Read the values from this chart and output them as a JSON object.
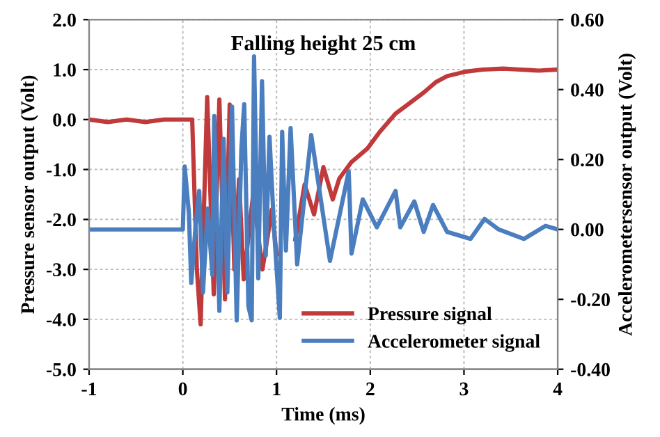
{
  "chart_data": {
    "type": "line",
    "title": "Falling height 25 cm",
    "xlabel": "Time (ms)",
    "ylabel": "Pressure sensor output (Volt)",
    "y2label": "Accelerometersensor output (Volt)",
    "xlim": [
      -1,
      4
    ],
    "xticks": [
      -1,
      0,
      1,
      2,
      3,
      4
    ],
    "ylim": [
      -5,
      2
    ],
    "yticks": [
      {
        "value": -5,
        "label": "-5.0"
      },
      {
        "value": -4,
        "label": "-4.0"
      },
      {
        "value": -3,
        "label": "-3.0"
      },
      {
        "value": -2,
        "label": "-2.0"
      },
      {
        "value": -1,
        "label": "-1.0"
      },
      {
        "value": 0,
        "label": "0.0"
      },
      {
        "value": 1,
        "label": "1.0"
      },
      {
        "value": 2,
        "label": "2.0"
      }
    ],
    "y2lim": [
      -0.4,
      0.6
    ],
    "y2ticks": [
      {
        "value": -0.4,
        "label": "-0.40"
      },
      {
        "value": -0.2,
        "label": "-0.20"
      },
      {
        "value": 0,
        "label": "0.00"
      },
      {
        "value": 0.2,
        "label": "0.20"
      },
      {
        "value": 0.4,
        "label": "0.40"
      },
      {
        "value": 0.6,
        "label": "0.60"
      }
    ],
    "grid": true,
    "legend": "bottom right",
    "line_style": "solid",
    "marker": "none",
    "series": [
      {
        "name": "Pressure signal",
        "color": "#c0393b",
        "x": [
          -1,
          -0.8,
          -0.6,
          -0.4,
          -0.2,
          0.0,
          0.1,
          0.15,
          0.19,
          0.26,
          0.33,
          0.39,
          0.45,
          0.5,
          0.55,
          0.6,
          0.65,
          0.75,
          0.85,
          0.95,
          1.0,
          1.1,
          1.2,
          1.3,
          1.4,
          1.5,
          1.6,
          1.67,
          1.8,
          1.97,
          2.1,
          2.27,
          2.4,
          2.57,
          2.7,
          2.82,
          3.02,
          3.2,
          3.42,
          3.6,
          3.8,
          3.99
        ],
        "values": [
          0.0,
          -0.05,
          0.0,
          -0.05,
          0.0,
          0.0,
          0.0,
          -3.0,
          -4.1,
          0.45,
          -3.5,
          0.4,
          -3.6,
          0.3,
          -3.0,
          -1.2,
          -3.2,
          -1.5,
          -3.0,
          -1.8,
          -2.7,
          null,
          -2.4,
          -1.3,
          -1.9,
          -0.95,
          -1.6,
          -1.18,
          -0.85,
          -0.58,
          -0.25,
          0.12,
          0.3,
          0.54,
          0.75,
          0.87,
          0.96,
          1.0,
          1.02,
          1.0,
          0.98,
          1.0
        ]
      },
      {
        "name": "Accelerometer signal",
        "color": "#4a7ebf",
        "axis": "y2",
        "x": [
          -1,
          -0.5,
          0.0,
          0.02,
          0.065,
          0.09,
          0.135,
          0.175,
          0.215,
          0.265,
          0.315,
          0.335,
          0.39,
          0.435,
          0.475,
          0.525,
          0.575,
          0.625,
          0.655,
          0.7,
          0.735,
          0.76,
          0.805,
          0.845,
          0.885,
          0.925,
          0.975,
          1.035,
          1.06,
          1.1,
          1.15,
          1.22,
          1.37,
          1.57,
          1.77,
          1.8,
          1.92,
          2.07,
          2.27,
          2.32,
          2.47,
          2.57,
          2.67,
          2.82,
          3.07,
          3.22,
          3.37,
          3.64,
          3.87,
          4.0
        ],
        "values": [
          0.0,
          0.0,
          0.0,
          0.18,
          0.046,
          -0.153,
          0.006,
          0.11,
          -0.18,
          0.06,
          -0.13,
          0.324,
          -0.233,
          0.259,
          -0.18,
          0.351,
          -0.26,
          0.231,
          0.358,
          -0.22,
          -0.26,
          0.495,
          -0.14,
          0.424,
          -0.074,
          0.265,
          -0.007,
          -0.253,
          0.279,
          -0.06,
          0.29,
          -0.1,
          0.27,
          -0.09,
          0.166,
          -0.069,
          0.086,
          0.006,
          0.11,
          0.006,
          0.08,
          -0.007,
          0.07,
          -0.007,
          -0.027,
          0.03,
          0.0,
          -0.027,
          0.01,
          0.0
        ]
      }
    ]
  }
}
